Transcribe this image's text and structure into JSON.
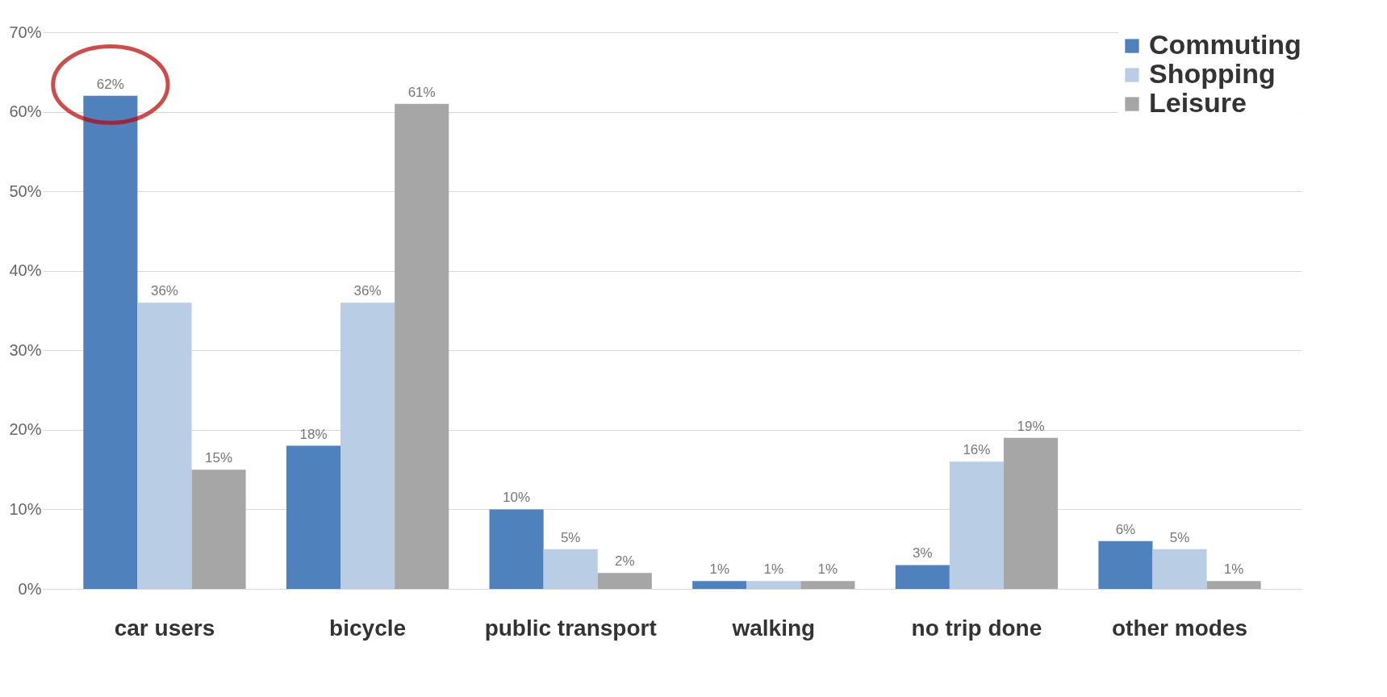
{
  "chart_data": {
    "type": "bar",
    "categories": [
      "car users",
      "bicycle",
      "public transport",
      "walking",
      "no trip done",
      "other modes"
    ],
    "series": [
      {
        "name": "Commuting",
        "color": "#4f81bd",
        "values": [
          62,
          18,
          10,
          1,
          3,
          6
        ],
        "value_labels": [
          "62%",
          "18%",
          "10%",
          "1%",
          "3%",
          "6%"
        ]
      },
      {
        "name": "Shopping",
        "color": "#b9cde5",
        "values": [
          36,
          36,
          5,
          1,
          16,
          5
        ],
        "value_labels": [
          "36%",
          "36%",
          "5%",
          "1%",
          "16%",
          "5%"
        ]
      },
      {
        "name": "Leisure",
        "color": "#a6a6a6",
        "values": [
          15,
          61,
          2,
          1,
          19,
          1
        ],
        "value_labels": [
          "15%",
          "61%",
          "2%",
          "1%",
          "19%",
          "1%"
        ]
      }
    ],
    "ylim": [
      0,
      70
    ],
    "yticks": [
      {
        "value": 0,
        "label": "0%"
      },
      {
        "value": 10,
        "label": "10%"
      },
      {
        "value": 20,
        "label": "20%"
      },
      {
        "value": 30,
        "label": "30%"
      },
      {
        "value": 40,
        "label": "40%"
      },
      {
        "value": 50,
        "label": "50%"
      },
      {
        "value": 60,
        "label": "60%"
      },
      {
        "value": 70,
        "label": "70%"
      }
    ],
    "grid": "y",
    "legend": "top right"
  }
}
